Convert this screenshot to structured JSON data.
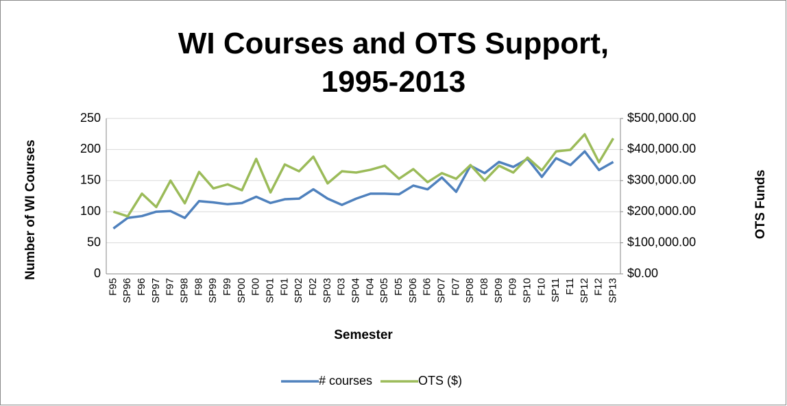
{
  "chart_data": {
    "type": "line",
    "title": "WI Courses and OTS Support, 1995-2013",
    "x_label": "Semester",
    "y_label": "Number of WI Courses",
    "y2_label": "OTS Funds",
    "categories": [
      "F95",
      "SP96",
      "F96",
      "SP97",
      "F97",
      "SP98",
      "F98",
      "SP99",
      "F99",
      "SP00",
      "F00",
      "SP01",
      "F01",
      "SP02",
      "F02",
      "SP03",
      "F03",
      "SP04",
      "F04",
      "SP05",
      "F05",
      "SP06",
      "F06",
      "SP07",
      "F07",
      "SP08",
      "F08",
      "SP09",
      "F09",
      "SP10",
      "F10",
      "SP11",
      "F11",
      "SP12",
      "F12",
      "SP13"
    ],
    "series": [
      {
        "name": "# courses",
        "color": "#4f81bd",
        "values": [
          73,
          90,
          93,
          100,
          101,
          90,
          117,
          115,
          112,
          114,
          124,
          114,
          120,
          121,
          136,
          121,
          111,
          121,
          129,
          129,
          128,
          142,
          136,
          155,
          132,
          174,
          162,
          180,
          172,
          185,
          156,
          186,
          175,
          197,
          167,
          180
        ]
      },
      {
        "name": "OTS ($)",
        "color": "#9bbb59",
        "axis": "y2",
        "values": [
          200000,
          185000,
          258000,
          215000,
          300000,
          227000,
          328000,
          275000,
          288000,
          269000,
          370000,
          262000,
          352000,
          330000,
          377000,
          291000,
          330000,
          326000,
          335000,
          348000,
          306000,
          337000,
          295000,
          324000,
          306000,
          350000,
          300000,
          348000,
          326000,
          374000,
          333000,
          394000,
          399000,
          449000,
          359000,
          436000
        ]
      }
    ],
    "ylim": [
      0,
      250
    ],
    "yticks": [
      0,
      50,
      100,
      150,
      200,
      250
    ],
    "y2lim": [
      0,
      500000
    ],
    "y2ticks": [
      {
        "value": 0,
        "label": "$0.00"
      },
      {
        "value": 100000,
        "label": "$100,000.00"
      },
      {
        "value": 200000,
        "label": "$200,000.00"
      },
      {
        "value": 300000,
        "label": "$300,000.00"
      },
      {
        "value": 400000,
        "label": "$400,000.00"
      },
      {
        "value": 500000,
        "label": "$500,000.00"
      }
    ],
    "grid": true,
    "legend": "bottom"
  }
}
